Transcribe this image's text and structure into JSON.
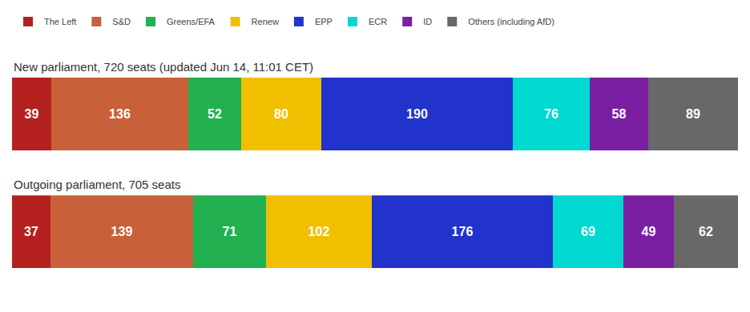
{
  "chart_data": [
    {
      "type": "bar",
      "orientation": "horizontal",
      "stacked": true,
      "title": "New parliament, 720 seats (updated Jun 14, 11:01 CET)",
      "categories": [
        null
      ],
      "series": [
        {
          "name": "The Left",
          "color": "#b52020",
          "values": [
            39
          ]
        },
        {
          "name": "S&D",
          "color": "#c8613a",
          "values": [
            136
          ]
        },
        {
          "name": "Greens/EFA",
          "color": "#22b050",
          "values": [
            52
          ]
        },
        {
          "name": "Renew",
          "color": "#f0c000",
          "values": [
            80
          ]
        },
        {
          "name": "EPP",
          "color": "#2233cc",
          "values": [
            190
          ]
        },
        {
          "name": "ECR",
          "color": "#00d8d0",
          "values": [
            76
          ]
        },
        {
          "name": "ID",
          "color": "#7b1fa2",
          "values": [
            58
          ]
        },
        {
          "name": "Others (including AfD)",
          "color": "#686868",
          "values": [
            89
          ]
        }
      ],
      "xlim": [
        0,
        720
      ],
      "data_labels": true,
      "tick_labels": false,
      "grid": false,
      "legend": "upper left"
    },
    {
      "type": "bar",
      "orientation": "horizontal",
      "stacked": true,
      "title": "Outgoing parliament, 705 seats",
      "categories": [
        null
      ],
      "series": [
        {
          "name": "The Left",
          "color": "#b52020",
          "values": [
            37
          ]
        },
        {
          "name": "S&D",
          "color": "#c8613a",
          "values": [
            139
          ]
        },
        {
          "name": "Greens/EFA",
          "color": "#22b050",
          "values": [
            71
          ]
        },
        {
          "name": "Renew",
          "color": "#f0c000",
          "values": [
            102
          ]
        },
        {
          "name": "EPP",
          "color": "#2233cc",
          "values": [
            176
          ]
        },
        {
          "name": "ECR",
          "color": "#00d8d0",
          "values": [
            69
          ]
        },
        {
          "name": "ID",
          "color": "#7b1fa2",
          "values": [
            49
          ]
        },
        {
          "name": "Others (including AfD)",
          "color": "#686868",
          "values": [
            62
          ]
        }
      ],
      "xlim": [
        0,
        705
      ],
      "data_labels": true,
      "tick_labels": false,
      "grid": false
    }
  ]
}
